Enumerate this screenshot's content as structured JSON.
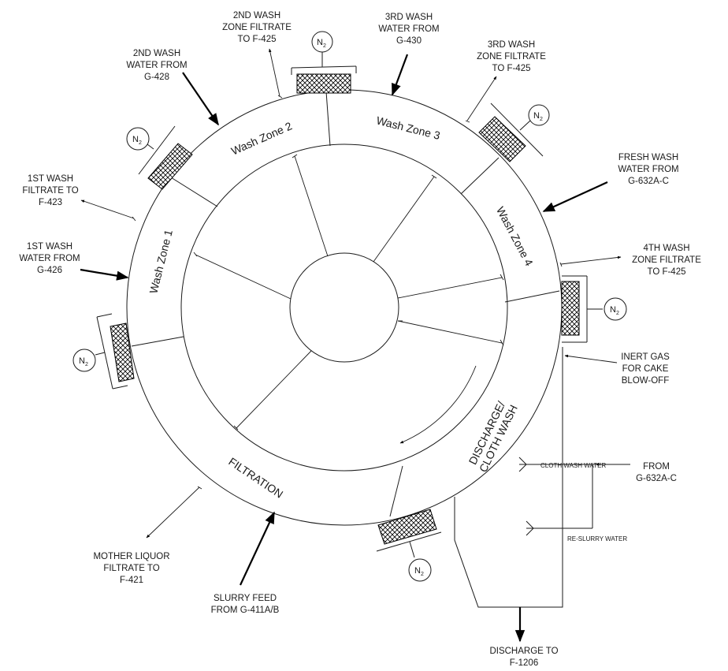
{
  "labels": {
    "wash2_filtrate": [
      "2ND WASH",
      "ZONE FILTRATE",
      "TO F-425"
    ],
    "wash3_water": [
      "3RD WASH",
      "WATER FROM",
      "G-430"
    ],
    "wash3_filtrate": [
      "3RD WASH",
      "ZONE FILTRATE",
      "TO F-425"
    ],
    "wash2_water": [
      "2ND WASH",
      "WATER FROM",
      "G-428"
    ],
    "fresh_wash": [
      "FRESH WASH",
      "WATER FROM",
      "G-632A-C"
    ],
    "wash1_filtrate": [
      "1ST WASH",
      "FILTRATE TO",
      "F-423"
    ],
    "wash4_filtrate": [
      "4TH WASH",
      "ZONE FILTRATE",
      "TO F-425"
    ],
    "wash1_water": [
      "1ST WASH",
      "WATER FROM",
      "G-426"
    ],
    "inert_gas": [
      "INERT GAS",
      "FOR CAKE",
      "BLOW-OFF"
    ],
    "from_g632": [
      "FROM",
      "G-632A-C"
    ],
    "mother_liquor": [
      "MOTHER LIQUOR",
      "FILTRATE TO",
      "F-421"
    ],
    "slurry_feed": [
      "SLURRY FEED",
      "FROM G-411A/B"
    ],
    "discharge": [
      "DISCHARGE TO",
      "F-1206"
    ],
    "cloth_wash_water": "CLOTH WASH WATER",
    "reslurry_water": "RE-SLURRY WATER"
  },
  "zones": {
    "wash1": "Wash Zone 1",
    "wash2": "Wash Zone 2",
    "wash3": "Wash Zone 3",
    "wash4": "Wash Zone 4",
    "filtration": "FILTRATION",
    "discharge": [
      "DISCHARGE/",
      "CLOTH WASH"
    ]
  },
  "n2": {
    "main": "N",
    "sub": "2"
  }
}
